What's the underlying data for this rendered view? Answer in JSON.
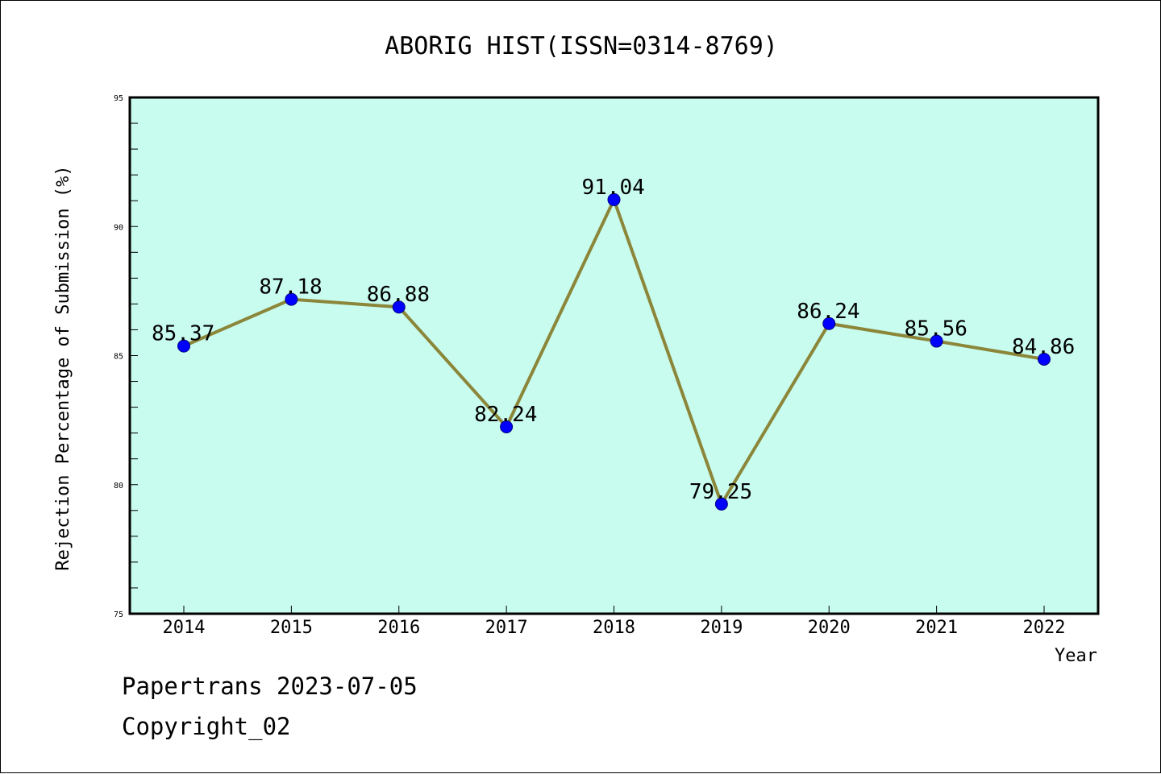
{
  "chart_data": {
    "type": "line",
    "title": "ABORIG HIST(ISSN=0314-8769)",
    "xlabel": "Year",
    "ylabel": "Rejection Percentage of Submission (%)",
    "categories": [
      "2014",
      "2015",
      "2016",
      "2017",
      "2018",
      "2019",
      "2020",
      "2021",
      "2022"
    ],
    "values": [
      85.37,
      87.18,
      86.88,
      82.24,
      91.04,
      79.25,
      86.24,
      85.56,
      84.86
    ],
    "data_labels": [
      "85.37",
      "87.18",
      "86.88",
      "82.24",
      "91.04",
      "79.25",
      "86.24",
      "85.56",
      "84.86"
    ],
    "ylim": [
      75,
      95
    ],
    "yticks": [
      "75",
      "80",
      "85",
      "90",
      "95"
    ],
    "grid": false,
    "colors": {
      "plot_background": "#c8fcee",
      "line": "#8b8639",
      "marker": "#0000ff",
      "marker_edge": "#000080"
    }
  },
  "footer": {
    "line1": "Papertrans 2023-07-05",
    "line2": "Copyright_02"
  }
}
